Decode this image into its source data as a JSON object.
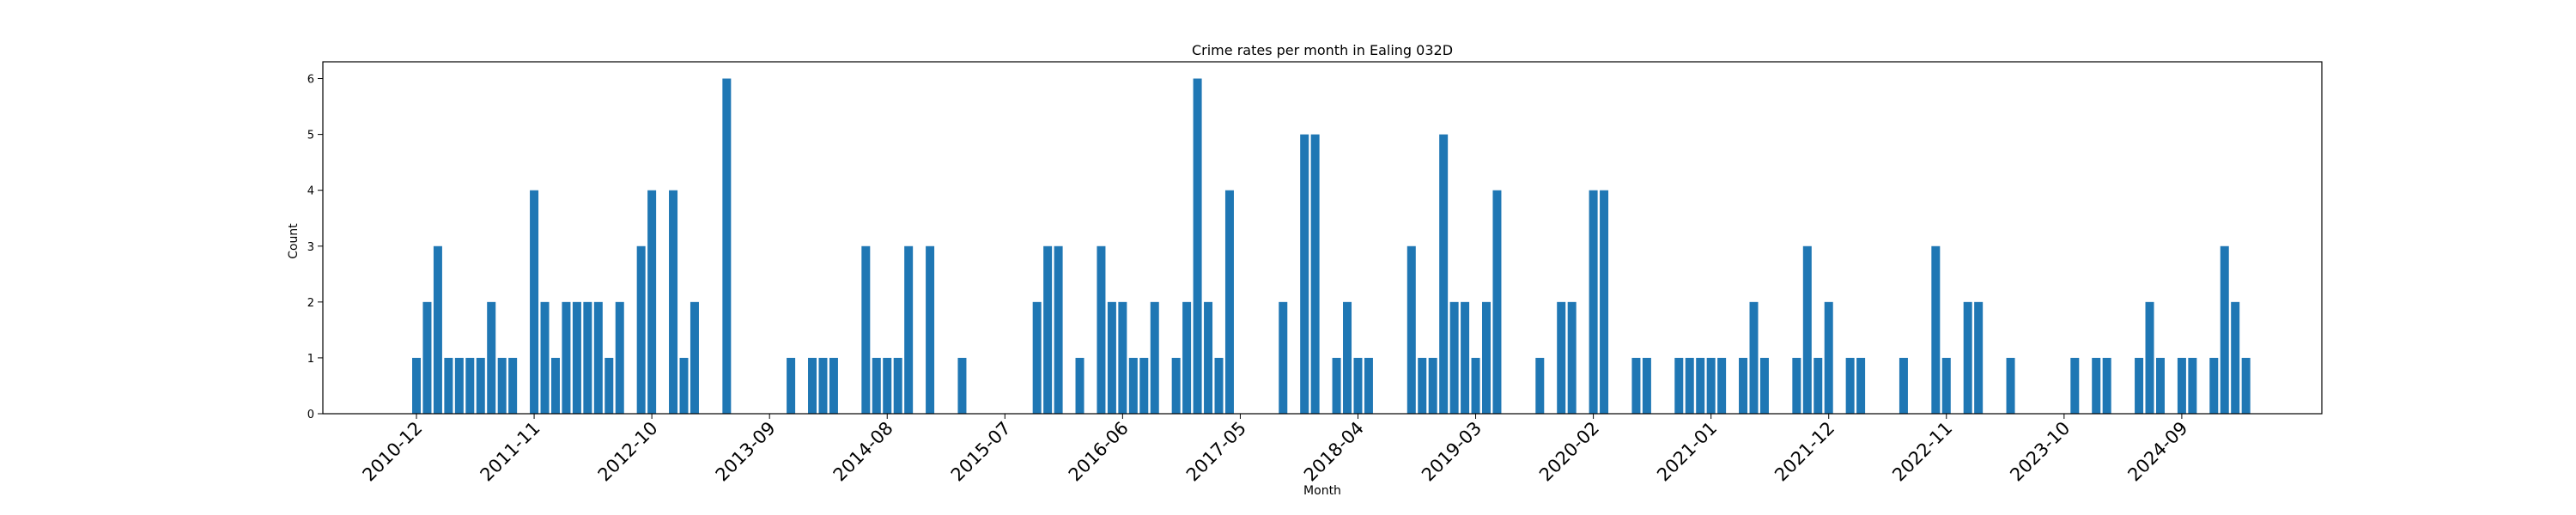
{
  "chart_data": {
    "type": "bar",
    "title": "Crime rates per month in Ealing 032D",
    "xlabel": "Month",
    "ylabel": "Count",
    "ylim": [
      0,
      6.3
    ],
    "yticks": [
      0,
      1,
      2,
      3,
      4,
      5,
      6
    ],
    "xtick_labels": [
      "2010-12",
      "2011-11",
      "2012-10",
      "2013-09",
      "2014-08",
      "2015-07",
      "2016-06",
      "2017-05",
      "2018-04",
      "2019-03",
      "2020-02",
      "2021-01",
      "2021-12",
      "2022-11",
      "2023-10",
      "2024-09"
    ],
    "bar_color": "#1f77b4",
    "grid": false,
    "legend": "none",
    "data": [
      {
        "month": "2010-12",
        "count": 1
      },
      {
        "month": "2011-01",
        "count": 2
      },
      {
        "month": "2011-02",
        "count": 3
      },
      {
        "month": "2011-03",
        "count": 1
      },
      {
        "month": "2011-04",
        "count": 1
      },
      {
        "month": "2011-05",
        "count": 1
      },
      {
        "month": "2011-06",
        "count": 1
      },
      {
        "month": "2011-07",
        "count": 2
      },
      {
        "month": "2011-08",
        "count": 1
      },
      {
        "month": "2011-09",
        "count": 1
      },
      {
        "month": "2011-11",
        "count": 4
      },
      {
        "month": "2011-12",
        "count": 2
      },
      {
        "month": "2012-01",
        "count": 1
      },
      {
        "month": "2012-02",
        "count": 2
      },
      {
        "month": "2012-03",
        "count": 2
      },
      {
        "month": "2012-04",
        "count": 2
      },
      {
        "month": "2012-05",
        "count": 2
      },
      {
        "month": "2012-06",
        "count": 1
      },
      {
        "month": "2012-07",
        "count": 2
      },
      {
        "month": "2012-09",
        "count": 3
      },
      {
        "month": "2012-10",
        "count": 4
      },
      {
        "month": "2012-12",
        "count": 4
      },
      {
        "month": "2013-01",
        "count": 1
      },
      {
        "month": "2013-02",
        "count": 2
      },
      {
        "month": "2013-05",
        "count": 6
      },
      {
        "month": "2013-11",
        "count": 1
      },
      {
        "month": "2014-01",
        "count": 1
      },
      {
        "month": "2014-02",
        "count": 1
      },
      {
        "month": "2014-03",
        "count": 1
      },
      {
        "month": "2014-06",
        "count": 3
      },
      {
        "month": "2014-07",
        "count": 1
      },
      {
        "month": "2014-08",
        "count": 1
      },
      {
        "month": "2014-09",
        "count": 1
      },
      {
        "month": "2014-10",
        "count": 3
      },
      {
        "month": "2014-12",
        "count": 3
      },
      {
        "month": "2015-03",
        "count": 1
      },
      {
        "month": "2015-10",
        "count": 2
      },
      {
        "month": "2015-11",
        "count": 3
      },
      {
        "month": "2015-12",
        "count": 3
      },
      {
        "month": "2016-02",
        "count": 1
      },
      {
        "month": "2016-04",
        "count": 3
      },
      {
        "month": "2016-05",
        "count": 2
      },
      {
        "month": "2016-06",
        "count": 2
      },
      {
        "month": "2016-07",
        "count": 1
      },
      {
        "month": "2016-08",
        "count": 1
      },
      {
        "month": "2016-09",
        "count": 2
      },
      {
        "month": "2016-11",
        "count": 1
      },
      {
        "month": "2016-12",
        "count": 2
      },
      {
        "month": "2017-01",
        "count": 6
      },
      {
        "month": "2017-02",
        "count": 2
      },
      {
        "month": "2017-03",
        "count": 1
      },
      {
        "month": "2017-04",
        "count": 4
      },
      {
        "month": "2017-09",
        "count": 2
      },
      {
        "month": "2017-11",
        "count": 5
      },
      {
        "month": "2017-12",
        "count": 5
      },
      {
        "month": "2018-02",
        "count": 1
      },
      {
        "month": "2018-03",
        "count": 2
      },
      {
        "month": "2018-04",
        "count": 1
      },
      {
        "month": "2018-05",
        "count": 1
      },
      {
        "month": "2018-09",
        "count": 3
      },
      {
        "month": "2018-10",
        "count": 1
      },
      {
        "month": "2018-11",
        "count": 1
      },
      {
        "month": "2018-12",
        "count": 5
      },
      {
        "month": "2019-01",
        "count": 2
      },
      {
        "month": "2019-02",
        "count": 2
      },
      {
        "month": "2019-03",
        "count": 1
      },
      {
        "month": "2019-04",
        "count": 2
      },
      {
        "month": "2019-05",
        "count": 4
      },
      {
        "month": "2019-09",
        "count": 1
      },
      {
        "month": "2019-11",
        "count": 2
      },
      {
        "month": "2019-12",
        "count": 2
      },
      {
        "month": "2020-02",
        "count": 4
      },
      {
        "month": "2020-03",
        "count": 4
      },
      {
        "month": "2020-06",
        "count": 1
      },
      {
        "month": "2020-07",
        "count": 1
      },
      {
        "month": "2020-10",
        "count": 1
      },
      {
        "month": "2020-11",
        "count": 1
      },
      {
        "month": "2020-12",
        "count": 1
      },
      {
        "month": "2021-01",
        "count": 1
      },
      {
        "month": "2021-02",
        "count": 1
      },
      {
        "month": "2021-04",
        "count": 1
      },
      {
        "month": "2021-05",
        "count": 2
      },
      {
        "month": "2021-06",
        "count": 1
      },
      {
        "month": "2021-09",
        "count": 1
      },
      {
        "month": "2021-10",
        "count": 3
      },
      {
        "month": "2021-11",
        "count": 1
      },
      {
        "month": "2021-12",
        "count": 2
      },
      {
        "month": "2022-02",
        "count": 1
      },
      {
        "month": "2022-03",
        "count": 1
      },
      {
        "month": "2022-07",
        "count": 1
      },
      {
        "month": "2022-10",
        "count": 3
      },
      {
        "month": "2022-11",
        "count": 1
      },
      {
        "month": "2023-01",
        "count": 2
      },
      {
        "month": "2023-02",
        "count": 2
      },
      {
        "month": "2023-05",
        "count": 1
      },
      {
        "month": "2023-11",
        "count": 1
      },
      {
        "month": "2024-01",
        "count": 1
      },
      {
        "month": "2024-02",
        "count": 1
      },
      {
        "month": "2024-05",
        "count": 1
      },
      {
        "month": "2024-06",
        "count": 2
      },
      {
        "month": "2024-07",
        "count": 1
      },
      {
        "month": "2024-09",
        "count": 1
      },
      {
        "month": "2024-10",
        "count": 1
      },
      {
        "month": "2024-12",
        "count": 1
      },
      {
        "month": "2025-01",
        "count": 3
      },
      {
        "month": "2025-02",
        "count": 2
      },
      {
        "month": "2025-03",
        "count": 1
      }
    ]
  }
}
